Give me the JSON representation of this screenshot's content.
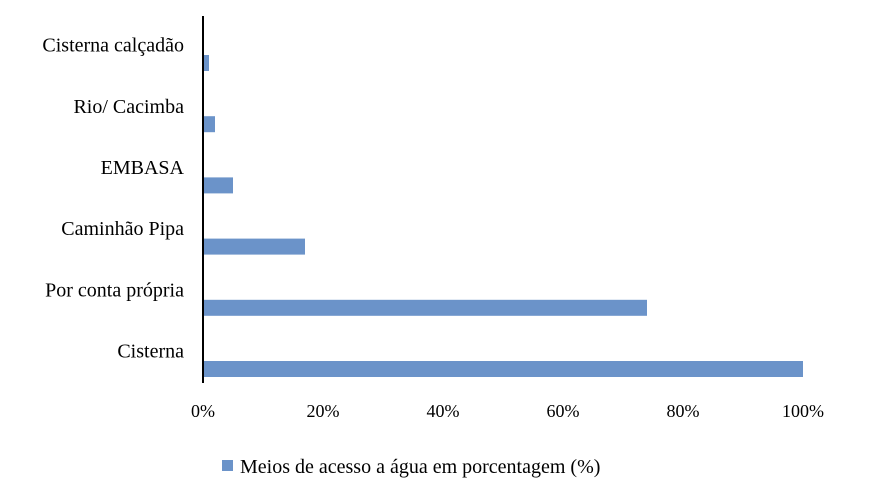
{
  "chart_data": {
    "type": "bar",
    "orientation": "horizontal",
    "categories": [
      "Cisterna calçadão",
      "Rio/ Cacimba",
      "EMBASA",
      "Caminhão Pipa",
      "Por conta própria",
      "Cisterna"
    ],
    "series": [
      {
        "name": "Meios de acesso a água em porcentagem (%)",
        "values": [
          1,
          2,
          5,
          17,
          74,
          100
        ],
        "color": "#6b93c9"
      }
    ],
    "xlim": [
      0,
      100
    ],
    "xticks": [
      0,
      20,
      40,
      60,
      80,
      100
    ],
    "tick_labels": [
      "0%",
      "20%",
      "40%",
      "60%",
      "80%",
      "100%"
    ],
    "grid": false,
    "legend_position": "bottom",
    "axis_color": "#000000"
  }
}
